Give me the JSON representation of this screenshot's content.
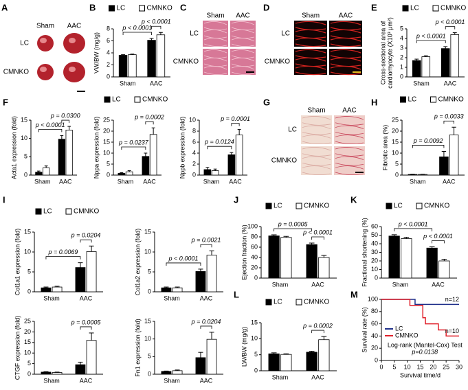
{
  "image_panels": [
    {
      "panel": "A",
      "columns": [
        "Sham",
        "AAC"
      ],
      "rows": [
        "LC",
        "CMNKO"
      ]
    },
    {
      "panel": "C",
      "columns": [
        "Sham",
        "AAC"
      ],
      "rows": [
        "LC",
        "CMNKO"
      ]
    },
    {
      "panel": "D",
      "columns": [
        "Sham",
        "AAC"
      ],
      "rows": [
        "LC",
        "CMNKO"
      ]
    },
    {
      "panel": "G",
      "columns": [
        "Sham",
        "AAC"
      ],
      "rows": [
        "LC",
        "CMNKO"
      ]
    }
  ],
  "chart_data": [
    {
      "type": "bar",
      "panel": "B",
      "ylabel": [
        "VW/BW (mg/g)"
      ],
      "categories": [
        "Sham",
        "AAC"
      ],
      "series": [
        {
          "name": "LC",
          "color": "#000000",
          "values": [
            3.6,
            6.1
          ],
          "errors": [
            0.1,
            0.3
          ]
        },
        {
          "name": "CMNKO",
          "color": "#ffffff",
          "values": [
            3.7,
            7.0
          ],
          "errors": [
            0.1,
            0.4
          ]
        }
      ],
      "ylim": [
        0,
        8
      ],
      "yticks": [
        0,
        2,
        4,
        6,
        8
      ],
      "annotations": [
        {
          "text": "p < 0.0001",
          "pair": [
            [
              0,
              0
            ],
            [
              0,
              1
            ]
          ]
        },
        {
          "text": "p < 0.0001",
          "pair": [
            [
              0,
              1
            ],
            [
              1,
              1
            ]
          ]
        }
      ]
    },
    {
      "type": "bar",
      "panel": "E",
      "ylabel": [
        "Cross-sectional area of",
        "cardiomyocyte (X10³ μm²)"
      ],
      "categories": [
        "Sham",
        "AAC"
      ],
      "series": [
        {
          "name": "LC",
          "color": "#000000",
          "values": [
            1.7,
            2.95
          ],
          "errors": [
            0.15,
            0.2
          ]
        },
        {
          "name": "CMNKO",
          "color": "#ffffff",
          "values": [
            2.1,
            4.4
          ],
          "errors": [
            0.1,
            0.2
          ]
        }
      ],
      "ylim": [
        0,
        5
      ],
      "yticks": [
        0,
        1,
        2,
        3,
        4,
        5
      ],
      "annotations": [
        {
          "text": "p < 0.0001",
          "pair": [
            [
              0,
              0
            ],
            [
              0,
              1
            ]
          ]
        },
        {
          "text": "p < 0.0001",
          "pair": [
            [
              0,
              1
            ],
            [
              1,
              1
            ]
          ]
        }
      ]
    },
    {
      "type": "bar",
      "panel": "F",
      "ylabel": [
        "Acta1 expression (fold)"
      ],
      "categories": [
        "Sham",
        "AAC"
      ],
      "series": [
        {
          "color": "#000000",
          "values": [
            0.8,
            9.8
          ],
          "errors": [
            0.3,
            1.0
          ]
        },
        {
          "color": "#ffffff",
          "values": [
            2.0,
            12.3
          ],
          "errors": [
            0.5,
            1.0
          ]
        }
      ],
      "ylim": [
        0,
        15
      ],
      "yticks": [
        0,
        5,
        10,
        15
      ],
      "annotations": [
        {
          "text": "p < 0.0001",
          "pair": [
            [
              0,
              0
            ],
            [
              0,
              1
            ]
          ]
        },
        {
          "text": "p = 0.0300",
          "pair": [
            [
              0,
              1
            ],
            [
              1,
              1
            ]
          ]
        }
      ]
    },
    {
      "type": "bar",
      "ylabel": [
        "Nppa expression (fold)"
      ],
      "categories": [
        "Sham",
        "AAC"
      ],
      "series": [
        {
          "name": "LC",
          "color": "#000000",
          "values": [
            0.8,
            8.5
          ],
          "errors": [
            0.3,
            1.5
          ]
        },
        {
          "name": "CMNKO",
          "color": "#ffffff",
          "values": [
            1.5,
            18.5
          ],
          "errors": [
            0.5,
            3.0
          ]
        }
      ],
      "ylim": [
        0,
        25
      ],
      "yticks": [
        0,
        5,
        10,
        15,
        20,
        25
      ],
      "annotations": [
        {
          "text": "p = 0.0237",
          "pair": [
            [
              0,
              0
            ],
            [
              0,
              1
            ]
          ]
        },
        {
          "text": "p = 0.0002",
          "pair": [
            [
              0,
              1
            ],
            [
              1,
              1
            ]
          ]
        }
      ]
    },
    {
      "type": "bar",
      "ylabel": [
        "Nppb expression (fold)"
      ],
      "categories": [
        "Sham",
        "AAC"
      ],
      "series": [
        {
          "color": "#000000",
          "values": [
            1.0,
            3.7
          ],
          "errors": [
            0.4,
            0.4
          ]
        },
        {
          "color": "#ffffff",
          "values": [
            0.8,
            7.3
          ],
          "errors": [
            0.3,
            1.0
          ]
        }
      ],
      "ylim": [
        0,
        10
      ],
      "yticks": [
        0,
        2,
        4,
        6,
        8,
        10
      ],
      "annotations": [
        {
          "text": "p = 0.0124",
          "pair": [
            [
              0,
              0
            ],
            [
              0,
              1
            ]
          ]
        },
        {
          "text": "p = 0.0001",
          "pair": [
            [
              0,
              1
            ],
            [
              1,
              1
            ]
          ]
        }
      ]
    },
    {
      "type": "bar",
      "panel": "H",
      "ylabel": [
        "Fibrotic area (%)"
      ],
      "categories": [
        "Sham",
        "AAC"
      ],
      "series": [
        {
          "name": "LC",
          "color": "#000000",
          "values": [
            0.3,
            8.3
          ],
          "errors": [
            0.1,
            2.5
          ]
        },
        {
          "name": "CMNKO",
          "color": "#ffffff",
          "values": [
            0.3,
            18.3
          ],
          "errors": [
            0.1,
            3.5
          ]
        }
      ],
      "ylim": [
        0,
        25
      ],
      "yticks": [
        0,
        5,
        10,
        15,
        20,
        25
      ],
      "annotations": [
        {
          "text": "p = 0.0092",
          "pair": [
            [
              0,
              0
            ],
            [
              0,
              1
            ]
          ]
        },
        {
          "text": "p = 0.0033",
          "pair": [
            [
              0,
              1
            ],
            [
              1,
              1
            ]
          ]
        }
      ]
    },
    {
      "type": "bar",
      "panel": "I",
      "ylabel": [
        "Col1a1 expression (fold)"
      ],
      "categories": [
        "Sham",
        "AAC"
      ],
      "series": [
        {
          "name": "LC",
          "color": "#000000",
          "values": [
            1.0,
            6.1
          ],
          "errors": [
            0.2,
            1.2
          ]
        },
        {
          "name": "CMNKO",
          "color": "#ffffff",
          "values": [
            1.2,
            10.1
          ],
          "errors": [
            0.2,
            1.4
          ]
        }
      ],
      "ylim": [
        0,
        15
      ],
      "yticks": [
        0,
        5,
        10,
        15
      ],
      "annotations": [
        {
          "text": "p = 0.0069",
          "pair": [
            [
              0,
              0
            ],
            [
              0,
              1
            ]
          ]
        },
        {
          "text": "p = 0.0204",
          "pair": [
            [
              0,
              1
            ],
            [
              1,
              1
            ]
          ]
        }
      ]
    },
    {
      "type": "bar",
      "ylabel": [
        "Col1a2 expression (fold)"
      ],
      "categories": [
        "Sham",
        "AAC"
      ],
      "series": [
        {
          "color": "#000000",
          "values": [
            1.0,
            5.1
          ],
          "errors": [
            0.2,
            0.6
          ]
        },
        {
          "color": "#ffffff",
          "values": [
            1.0,
            9.2
          ],
          "errors": [
            0.2,
            1.1
          ]
        }
      ],
      "ylim": [
        0,
        15
      ],
      "yticks": [
        0,
        5,
        10,
        15
      ],
      "annotations": [
        {
          "text": "p < 0.0001",
          "pair": [
            [
              0,
              0
            ],
            [
              0,
              1
            ]
          ]
        },
        {
          "text": "p = 0.0021",
          "pair": [
            [
              0,
              1
            ],
            [
              1,
              1
            ]
          ]
        }
      ]
    },
    {
      "type": "bar",
      "ylabel": [
        "CTGF expression (fold)"
      ],
      "categories": [
        "Sham",
        "AAC"
      ],
      "series": [
        {
          "color": "#000000",
          "values": [
            1.0,
            4.5
          ],
          "errors": [
            0.2,
            1.2
          ]
        },
        {
          "color": "#ffffff",
          "values": [
            0.8,
            16.0
          ],
          "errors": [
            0.2,
            3.5
          ]
        }
      ],
      "ylim": [
        0,
        25
      ],
      "yticks": [
        0,
        5,
        10,
        15,
        20,
        25
      ],
      "annotations": [
        {
          "text": "p = 0.0005",
          "pair": [
            [
              0,
              1
            ],
            [
              1,
              1
            ]
          ]
        }
      ]
    },
    {
      "type": "bar",
      "ylabel": [
        "Fn1 expression (fold)"
      ],
      "categories": [
        "Sham",
        "AAC"
      ],
      "series": [
        {
          "color": "#000000",
          "values": [
            0.8,
            4.7
          ],
          "errors": [
            0.1,
            1.5
          ]
        },
        {
          "color": "#ffffff",
          "values": [
            1.0,
            9.9
          ],
          "errors": [
            0.2,
            2.0
          ]
        }
      ],
      "ylim": [
        0,
        15
      ],
      "yticks": [
        0,
        5,
        10,
        15
      ],
      "annotations": [
        {
          "text": "p = 0.0204",
          "pair": [
            [
              0,
              1
            ],
            [
              1,
              1
            ]
          ]
        }
      ]
    },
    {
      "type": "bar",
      "panel": "J",
      "ylabel": [
        "Ejection fraction (%)"
      ],
      "categories": [
        "Sham",
        "AAC"
      ],
      "series": [
        {
          "name": "LC",
          "color": "#000000",
          "values": [
            82,
            65
          ],
          "errors": [
            2,
            3
          ]
        },
        {
          "name": "CMNKO",
          "color": "#ffffff",
          "values": [
            79,
            40
          ],
          "errors": [
            2,
            4
          ]
        }
      ],
      "ylim": [
        0,
        100
      ],
      "yticks": [
        0,
        20,
        40,
        60,
        80,
        100
      ],
      "annotations": [
        {
          "text": "p = 0.0005",
          "pair": [
            [
              0,
              0
            ],
            [
              0,
              1
            ]
          ]
        },
        {
          "text": "p < 0.0001",
          "pair": [
            [
              0,
              1
            ],
            [
              1,
              1
            ]
          ]
        }
      ]
    },
    {
      "type": "bar",
      "panel": "K",
      "ylabel": [
        "Fractional shortening (%)"
      ],
      "categories": [
        "Sham",
        "AAC"
      ],
      "series": [
        {
          "name": "LC",
          "color": "#000000",
          "values": [
            49,
            35
          ],
          "errors": [
            1.5,
            1.5
          ]
        },
        {
          "name": "CMNKO",
          "color": "#ffffff",
          "values": [
            46,
            20
          ],
          "errors": [
            1.5,
            2
          ]
        }
      ],
      "ylim": [
        0,
        60
      ],
      "yticks": [
        0,
        10,
        20,
        30,
        40,
        50,
        60
      ],
      "annotations": [
        {
          "text": "p < 0.0001",
          "pair": [
            [
              0,
              0
            ],
            [
              0,
              1
            ]
          ]
        },
        {
          "text": "p < 0.0001",
          "pair": [
            [
              0,
              1
            ],
            [
              1,
              1
            ]
          ]
        }
      ]
    },
    {
      "type": "bar",
      "panel": "L",
      "ylabel": [
        "LW/BW (mg/g)"
      ],
      "categories": [
        "Sham",
        "AAC"
      ],
      "series": [
        {
          "name": "LC",
          "color": "#000000",
          "values": [
            5.3,
            5.8
          ],
          "errors": [
            0.3,
            0.3
          ]
        },
        {
          "name": "CMNKO",
          "color": "#ffffff",
          "values": [
            5.1,
            9.7
          ],
          "errors": [
            0.2,
            1.0
          ]
        }
      ],
      "ylim": [
        0,
        15
      ],
      "yticks": [
        0,
        5,
        10,
        15
      ],
      "annotations": [
        {
          "text": "p = 0.0002",
          "pair": [
            [
              0,
              1
            ],
            [
              1,
              1
            ]
          ]
        }
      ]
    },
    {
      "type": "line",
      "panel": "M",
      "step": true,
      "ylabel": [
        "Survival rate (%)"
      ],
      "xlabel": "Survival time/d",
      "series": [
        {
          "name": "LC",
          "color": "#1f2f8a",
          "n_label": "n=12",
          "x": [
            0,
            13,
            30
          ],
          "values": [
            100,
            91.7,
            91.7
          ]
        },
        {
          "name": "CMNKO",
          "color": "#e0202a",
          "n_label": "n=10",
          "x": [
            0,
            11,
            16,
            17,
            22,
            25,
            30
          ],
          "values": [
            100,
            90,
            70,
            60,
            50,
            40,
            40
          ]
        }
      ],
      "xlim": [
        0,
        30
      ],
      "xticks": [
        0,
        5,
        10,
        15,
        20,
        25,
        30
      ],
      "ylim": [
        0,
        100
      ],
      "yticks": [
        0,
        20,
        40,
        60,
        80,
        100
      ],
      "legend": "lower-left",
      "test": "Log-rank (Mantel-Cox) Test",
      "p_value": "p=0.0138"
    }
  ]
}
